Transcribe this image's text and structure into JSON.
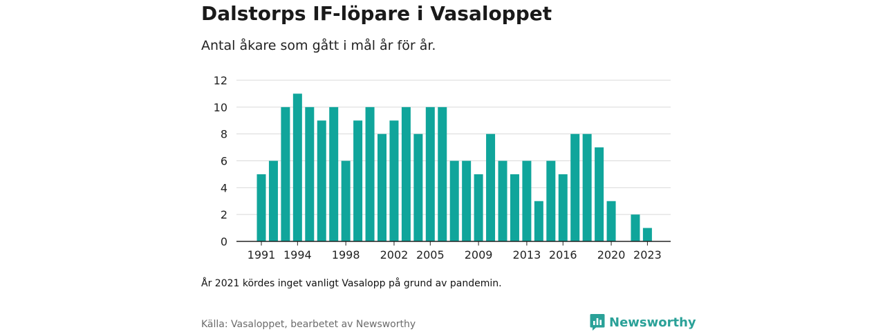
{
  "colors": {
    "bar": "#10a59b",
    "grid": "#d9d9d9",
    "axis": "#222222",
    "brand": "#2aa198"
  },
  "header": {
    "title": "Dalstorps IF-löpare i Vasaloppet",
    "subtitle": "Antal åkare som gått i mål år för år."
  },
  "footer": {
    "note": "År 2021 kördes inget vanligt Vasalopp på grund av pandemin.",
    "source": "Källa: Vasaloppet, bearbetet av Newsworthy",
    "brand_name": "Newsworthy",
    "brand_icon": "newsworthy-logo-icon"
  },
  "chart_data": {
    "type": "bar",
    "title": "Dalstorps IF-löpare i Vasaloppet",
    "subtitle": "Antal åkare som gått i mål år för år.",
    "xlabel": "",
    "ylabel": "",
    "ylim": [
      0,
      12
    ],
    "yticks": [
      0,
      2,
      4,
      6,
      8,
      10,
      12
    ],
    "xtick_labels": [
      "1991",
      "1994",
      "1998",
      "2002",
      "2005",
      "2009",
      "2013",
      "2016",
      "2020",
      "2023"
    ],
    "grid": true,
    "legend": "none",
    "categories": [
      1991,
      1992,
      1993,
      1994,
      1995,
      1996,
      1997,
      1998,
      1999,
      2000,
      2001,
      2002,
      2003,
      2004,
      2005,
      2006,
      2007,
      2008,
      2009,
      2010,
      2011,
      2012,
      2013,
      2014,
      2015,
      2016,
      2017,
      2018,
      2019,
      2020,
      2021,
      2022,
      2023
    ],
    "values": [
      5,
      6,
      10,
      11,
      10,
      9,
      10,
      6,
      9,
      10,
      8,
      9,
      10,
      8,
      10,
      10,
      6,
      6,
      5,
      8,
      6,
      5,
      6,
      3,
      6,
      5,
      8,
      8,
      7,
      3,
      null,
      2,
      1
    ]
  }
}
